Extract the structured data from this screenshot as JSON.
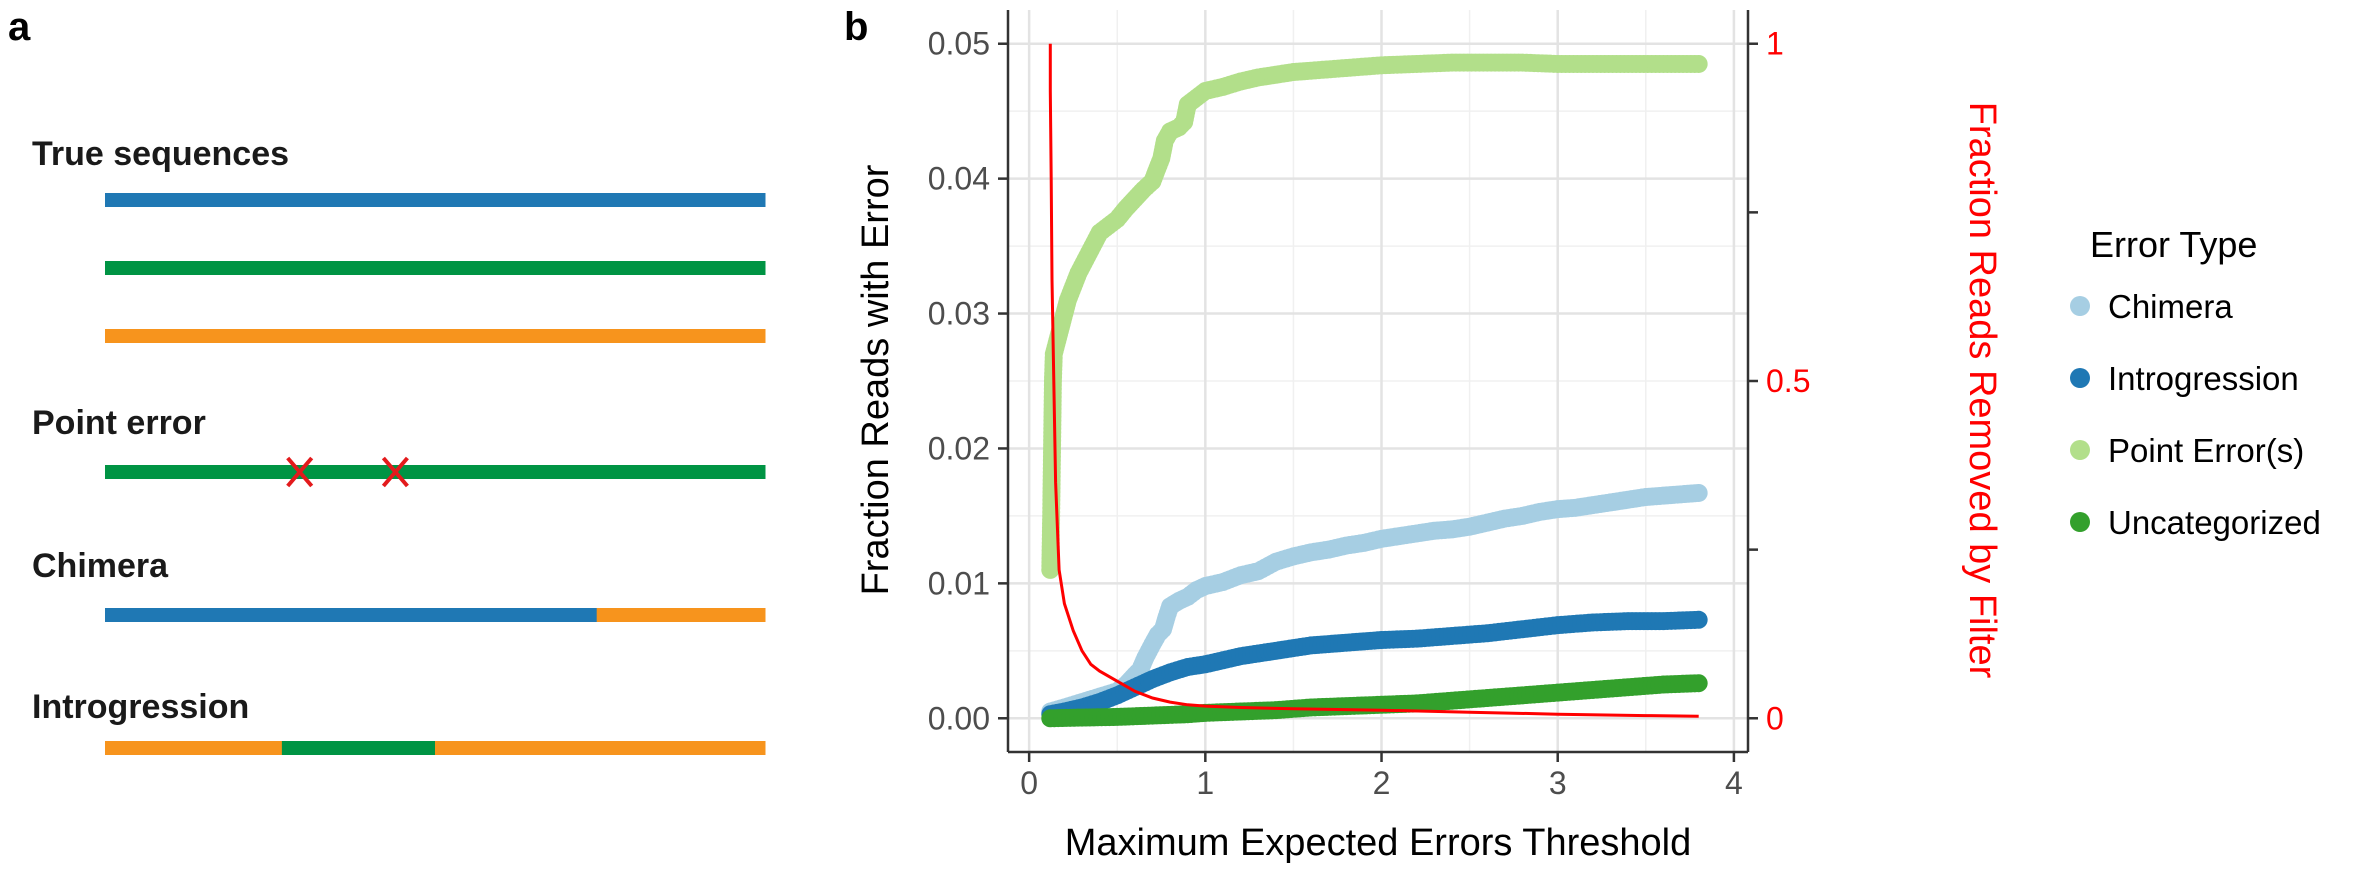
{
  "panel_a": {
    "label": "a",
    "colors": {
      "blue": "#1f78b4",
      "green": "#009444",
      "orange": "#f7941d",
      "error_mark": "#e31a1c"
    },
    "groups": [
      {
        "title": "True sequences",
        "rows": [
          [
            {
              "color": "blue",
              "frac": 1
            }
          ],
          [
            {
              "color": "green",
              "frac": 1
            }
          ],
          [
            {
              "color": "orange",
              "frac": 1
            }
          ]
        ]
      },
      {
        "title": "Point error",
        "rows": [
          [
            {
              "color": "green",
              "frac": 1
            }
          ]
        ],
        "error_marks": [
          0.295,
          0.44
        ]
      },
      {
        "title": "Chimera",
        "rows": [
          [
            {
              "color": "blue",
              "frac": 0.745
            },
            {
              "color": "orange",
              "frac": 0.255
            }
          ]
        ]
      },
      {
        "title": "Introgression",
        "rows": [
          [
            {
              "color": "orange",
              "frac": 0.268
            },
            {
              "color": "green",
              "frac": 0.232
            },
            {
              "color": "orange",
              "frac": 0.5
            }
          ]
        ]
      }
    ]
  },
  "panel_b": {
    "label": "b",
    "chart_data": {
      "type": "scatter",
      "xlabel": "Maximum Expected Errors Threshold",
      "ylabel": "Fraction Reads with Error",
      "ylabel_right": "Fraction Reads Removed by Filter",
      "xlim": [
        -0.12,
        4.08
      ],
      "ylim": [
        -0.0025,
        0.0525
      ],
      "x_ticks": [
        0,
        1,
        2,
        3,
        4
      ],
      "x_tick_labels": [
        "0",
        "1",
        "2",
        "3",
        "4"
      ],
      "y_ticks": [
        0,
        0.01,
        0.02,
        0.03,
        0.04,
        0.05
      ],
      "y_tick_labels": [
        "0.00",
        "0.01",
        "0.02",
        "0.03",
        "0.04",
        "0.05"
      ],
      "y2_ticks": [
        0,
        0.5,
        1
      ],
      "y2_tick_labels": [
        "0",
        "0.5",
        "1"
      ],
      "y2_minor_ticks": [
        0.25,
        0.75
      ],
      "y2_scale": 0.05,
      "grid": true,
      "legend_title": "Error Type",
      "legend_position": "right",
      "series": [
        {
          "name": "Chimera",
          "color": "#a6cee3",
          "points": [
            [
              0.12,
              0.0005
            ],
            [
              0.2,
              0.0008
            ],
            [
              0.3,
              0.0012
            ],
            [
              0.4,
              0.0016
            ],
            [
              0.5,
              0.002
            ],
            [
              0.55,
              0.0025
            ],
            [
              0.6,
              0.0032
            ],
            [
              0.63,
              0.0036
            ],
            [
              0.66,
              0.0045
            ],
            [
              0.7,
              0.0055
            ],
            [
              0.73,
              0.0062
            ],
            [
              0.76,
              0.0066
            ],
            [
              0.78,
              0.0075
            ],
            [
              0.8,
              0.0083
            ],
            [
              0.85,
              0.0087
            ],
            [
              0.9,
              0.009
            ],
            [
              0.95,
              0.0095
            ],
            [
              1.0,
              0.0098
            ],
            [
              1.1,
              0.0101
            ],
            [
              1.2,
              0.0106
            ],
            [
              1.3,
              0.0109
            ],
            [
              1.4,
              0.0116
            ],
            [
              1.5,
              0.012
            ],
            [
              1.6,
              0.0123
            ],
            [
              1.7,
              0.0125
            ],
            [
              1.8,
              0.0128
            ],
            [
              1.9,
              0.013
            ],
            [
              2.0,
              0.0133
            ],
            [
              2.1,
              0.0135
            ],
            [
              2.2,
              0.0137
            ],
            [
              2.3,
              0.0139
            ],
            [
              2.4,
              0.014
            ],
            [
              2.5,
              0.0142
            ],
            [
              2.6,
              0.0145
            ],
            [
              2.7,
              0.0148
            ],
            [
              2.8,
              0.015
            ],
            [
              2.9,
              0.0153
            ],
            [
              3.0,
              0.0155
            ],
            [
              3.1,
              0.0156
            ],
            [
              3.2,
              0.0158
            ],
            [
              3.3,
              0.016
            ],
            [
              3.4,
              0.0162
            ],
            [
              3.5,
              0.0164
            ],
            [
              3.6,
              0.0165
            ],
            [
              3.7,
              0.0166
            ],
            [
              3.8,
              0.0167
            ]
          ]
        },
        {
          "name": "Introgression",
          "color": "#1f78b4",
          "points": [
            [
              0.12,
              0.0003
            ],
            [
              0.2,
              0.0005
            ],
            [
              0.3,
              0.0008
            ],
            [
              0.4,
              0.0012
            ],
            [
              0.5,
              0.0017
            ],
            [
              0.6,
              0.0023
            ],
            [
              0.7,
              0.0029
            ],
            [
              0.8,
              0.0034
            ],
            [
              0.9,
              0.0038
            ],
            [
              1.0,
              0.004
            ],
            [
              1.1,
              0.0043
            ],
            [
              1.2,
              0.0046
            ],
            [
              1.3,
              0.0048
            ],
            [
              1.4,
              0.005
            ],
            [
              1.5,
              0.0052
            ],
            [
              1.6,
              0.0054
            ],
            [
              1.7,
              0.0055
            ],
            [
              1.8,
              0.0056
            ],
            [
              1.9,
              0.0057
            ],
            [
              2.0,
              0.0058
            ],
            [
              2.2,
              0.0059
            ],
            [
              2.4,
              0.0061
            ],
            [
              2.6,
              0.0063
            ],
            [
              2.8,
              0.0066
            ],
            [
              3.0,
              0.0069
            ],
            [
              3.2,
              0.0071
            ],
            [
              3.4,
              0.0072
            ],
            [
              3.6,
              0.0072
            ],
            [
              3.8,
              0.0073
            ]
          ]
        },
        {
          "name": "Point Error(s)",
          "color": "#b2df8a",
          "points": [
            [
              0.12,
              0.011
            ],
            [
              0.125,
              0.015
            ],
            [
              0.13,
              0.02
            ],
            [
              0.135,
              0.025
            ],
            [
              0.14,
              0.027
            ],
            [
              0.16,
              0.028
            ],
            [
              0.18,
              0.029
            ],
            [
              0.2,
              0.03
            ],
            [
              0.22,
              0.031
            ],
            [
              0.25,
              0.032
            ],
            [
              0.28,
              0.033
            ],
            [
              0.32,
              0.034
            ],
            [
              0.36,
              0.035
            ],
            [
              0.4,
              0.036
            ],
            [
              0.45,
              0.0365
            ],
            [
              0.5,
              0.037
            ],
            [
              0.55,
              0.0378
            ],
            [
              0.6,
              0.0385
            ],
            [
              0.65,
              0.0392
            ],
            [
              0.7,
              0.0398
            ],
            [
              0.72,
              0.0405
            ],
            [
              0.75,
              0.0415
            ],
            [
              0.77,
              0.0428
            ],
            [
              0.8,
              0.0435
            ],
            [
              0.85,
              0.0438
            ],
            [
              0.88,
              0.0442
            ],
            [
              0.9,
              0.0455
            ],
            [
              0.95,
              0.046
            ],
            [
              1.0,
              0.0465
            ],
            [
              1.1,
              0.0468
            ],
            [
              1.2,
              0.0472
            ],
            [
              1.3,
              0.0475
            ],
            [
              1.4,
              0.0477
            ],
            [
              1.5,
              0.0479
            ],
            [
              1.6,
              0.048
            ],
            [
              1.8,
              0.0482
            ],
            [
              2.0,
              0.0484
            ],
            [
              2.2,
              0.0485
            ],
            [
              2.4,
              0.0486
            ],
            [
              2.6,
              0.0486
            ],
            [
              2.8,
              0.0486
            ],
            [
              3.0,
              0.0485
            ],
            [
              3.2,
              0.0485
            ],
            [
              3.4,
              0.0485
            ],
            [
              3.6,
              0.0485
            ],
            [
              3.8,
              0.0485
            ]
          ]
        },
        {
          "name": "Uncategorized",
          "color": "#33a02c",
          "points": [
            [
              0.12,
              0.0
            ],
            [
              0.3,
              5e-05
            ],
            [
              0.5,
              0.0001
            ],
            [
              0.7,
              0.0002
            ],
            [
              0.9,
              0.0003
            ],
            [
              1.0,
              0.0004
            ],
            [
              1.2,
              0.0005
            ],
            [
              1.4,
              0.0006
            ],
            [
              1.6,
              0.0008
            ],
            [
              1.8,
              0.0009
            ],
            [
              2.0,
              0.001
            ],
            [
              2.2,
              0.0011
            ],
            [
              2.4,
              0.0013
            ],
            [
              2.6,
              0.0015
            ],
            [
              2.8,
              0.0017
            ],
            [
              3.0,
              0.0019
            ],
            [
              3.2,
              0.0021
            ],
            [
              3.4,
              0.0023
            ],
            [
              3.6,
              0.0025
            ],
            [
              3.8,
              0.0026
            ]
          ]
        }
      ],
      "filter_curve": {
        "color": "#ff0000",
        "points": [
          [
            0.12,
            1.0
          ],
          [
            0.12,
            0.93
          ],
          [
            0.125,
            0.8
          ],
          [
            0.13,
            0.65
          ],
          [
            0.14,
            0.5
          ],
          [
            0.15,
            0.35
          ],
          [
            0.17,
            0.22
          ],
          [
            0.2,
            0.17
          ],
          [
            0.25,
            0.13
          ],
          [
            0.3,
            0.1
          ],
          [
            0.35,
            0.08
          ],
          [
            0.4,
            0.07
          ],
          [
            0.5,
            0.055
          ],
          [
            0.6,
            0.04
          ],
          [
            0.7,
            0.03
          ],
          [
            0.8,
            0.024
          ],
          [
            0.9,
            0.02
          ],
          [
            1.0,
            0.018
          ],
          [
            1.2,
            0.016
          ],
          [
            1.5,
            0.014
          ],
          [
            2.0,
            0.012
          ],
          [
            2.5,
            0.009
          ],
          [
            3.0,
            0.006
          ],
          [
            3.5,
            0.004
          ],
          [
            3.8,
            0.003
          ]
        ]
      }
    }
  }
}
